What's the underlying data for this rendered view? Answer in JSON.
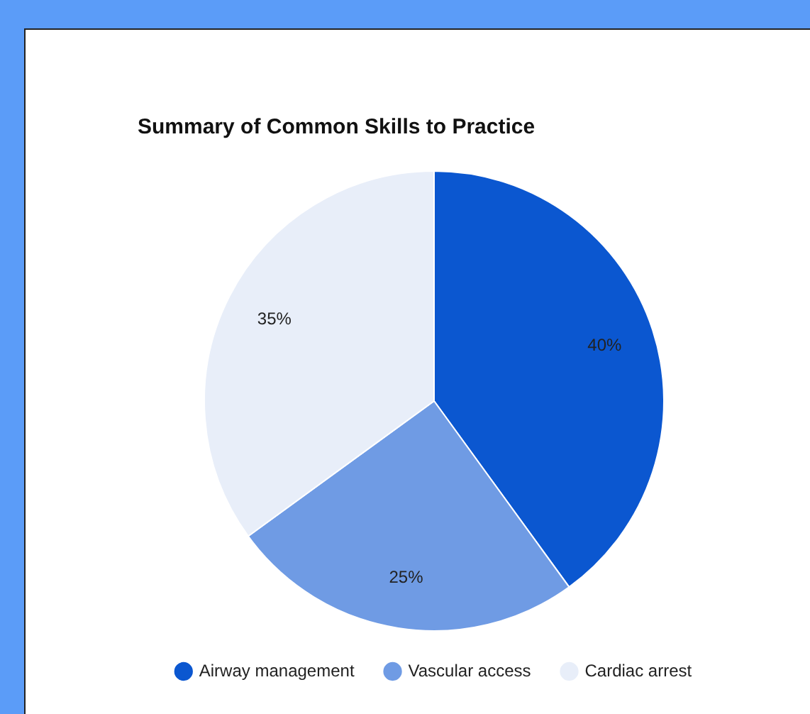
{
  "chart_data": {
    "type": "pie",
    "title": "Summary of Common Skills to Practice",
    "categories": [
      "Airway management",
      "Vascular access",
      "Cardiac arrest"
    ],
    "values": [
      40,
      25,
      35
    ],
    "value_labels": [
      "40%",
      "25%",
      "35%"
    ],
    "colors": [
      "#0b57d0",
      "#6f9be4",
      "#e8eef9"
    ],
    "legend": "bottom"
  }
}
